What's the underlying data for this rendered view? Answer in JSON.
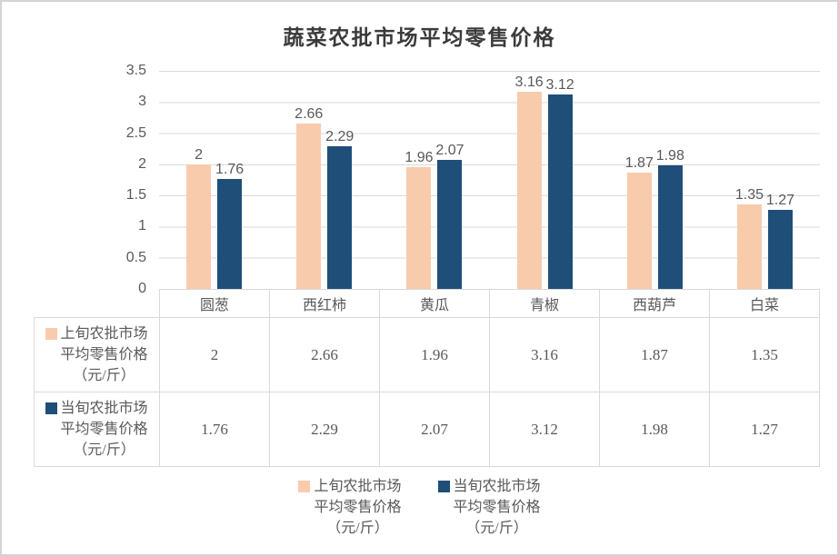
{
  "title": "蔬菜农批市场平均零售价格",
  "colors": {
    "series1": "#F8CBAD",
    "series2": "#1F4E79",
    "gridline": "#D9D9D9",
    "table_border": "#D9D9D9",
    "text": "#595959"
  },
  "chart_data": {
    "type": "bar",
    "title": "蔬菜农批市场平均零售价格",
    "categories": [
      "圆葱",
      "西红柿",
      "黄瓜",
      "青椒",
      "西葫芦",
      "白菜"
    ],
    "series": [
      {
        "name": "上旬农批市场平均零售价格（元/斤）",
        "color": "#F8CBAD",
        "values": [
          2,
          2.66,
          1.96,
          3.16,
          1.87,
          1.35
        ]
      },
      {
        "name": "当旬农批市场平均零售价格（元/斤）",
        "color": "#1F4E79",
        "values": [
          1.76,
          2.29,
          2.07,
          3.12,
          1.98,
          1.27
        ]
      }
    ],
    "xlabel": "",
    "ylabel": "",
    "ylim": [
      0,
      3.5
    ],
    "y_ticks": [
      "3.5",
      "3",
      "2.5",
      "2",
      "1.5",
      "1",
      "0.5",
      "0"
    ],
    "grid": true,
    "data_labels": true,
    "legend_position": "bottom",
    "data_table_shown": true
  },
  "legend": {
    "entries": [
      {
        "lines": [
          "上旬农批市场",
          "平均零售价格",
          "（元/斤）"
        ]
      },
      {
        "lines": [
          "当旬农批市场",
          "平均零售价格",
          "（元/斤）"
        ]
      }
    ]
  }
}
